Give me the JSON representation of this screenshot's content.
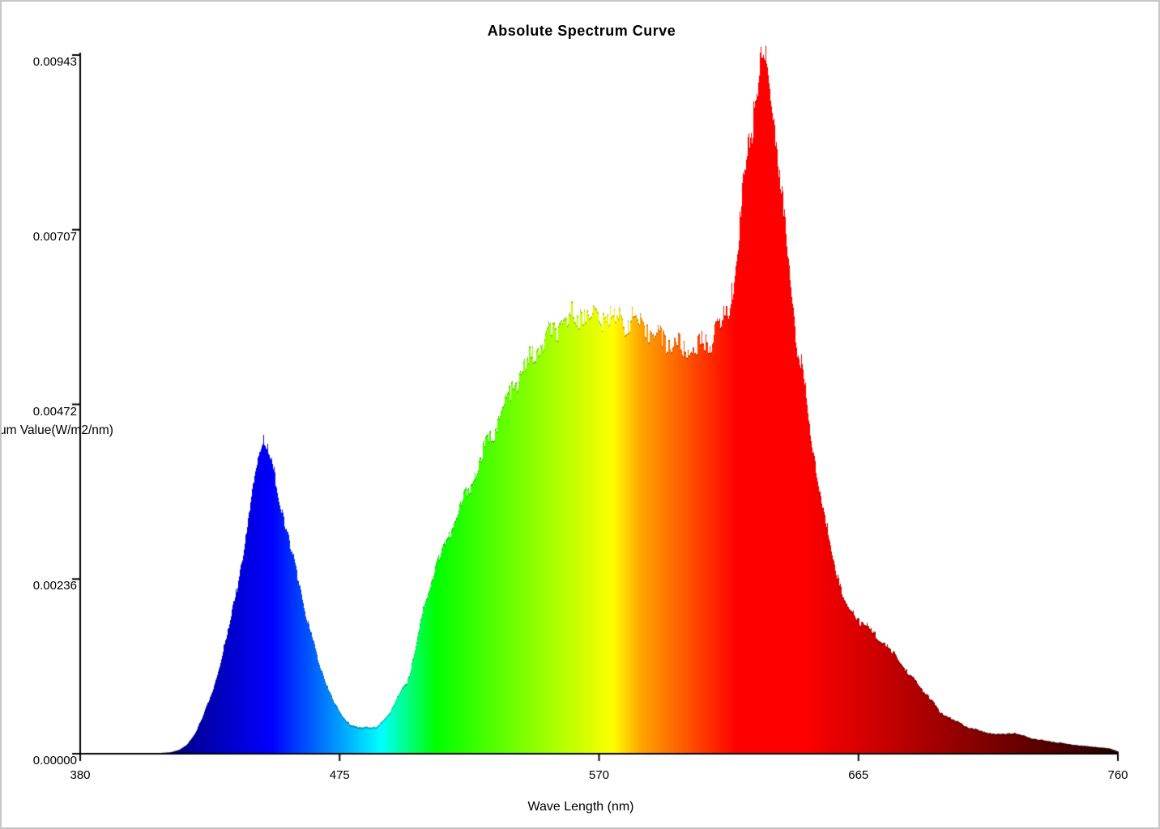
{
  "chart_data": {
    "type": "area",
    "title": "Absolute Spectrum Curve",
    "xlabel": "Wave Length (nm)",
    "ylabel_visible": "um Value(W/m2/nm)",
    "series_name": "absolute spectral power distribution",
    "color_mode": "spectral-rainbow-fill",
    "xlim": [
      380,
      760
    ],
    "ylim": [
      0,
      0.00943
    ],
    "x_ticks": [
      "380",
      "475",
      "570",
      "665",
      "760"
    ],
    "y_ticks": [
      "0.00000",
      "0.00236",
      "0.00472",
      "0.00707",
      "0.00943"
    ],
    "grid": false,
    "legend": false,
    "points": [
      [
        380,
        0
      ],
      [
        405,
        0
      ],
      [
        409,
        1e-05
      ],
      [
        413,
        2e-05
      ],
      [
        416,
        5e-05
      ],
      [
        419,
        0.00012
      ],
      [
        422,
        0.00028
      ],
      [
        425,
        0.00052
      ],
      [
        428,
        0.00081
      ],
      [
        431,
        0.00119
      ],
      [
        434,
        0.00166
      ],
      [
        437,
        0.00221
      ],
      [
        440,
        0.0028
      ],
      [
        442,
        0.0033
      ],
      [
        444,
        0.00385
      ],
      [
        446,
        0.0042
      ],
      [
        447,
        0.00425
      ],
      [
        448,
        0.00415
      ],
      [
        450,
        0.00398
      ],
      [
        452,
        0.00356
      ],
      [
        455,
        0.00308
      ],
      [
        458,
        0.00261
      ],
      [
        461,
        0.00214
      ],
      [
        464,
        0.00166
      ],
      [
        467,
        0.00127
      ],
      [
        470,
        0.00094
      ],
      [
        473,
        0.00068
      ],
      [
        476,
        0.0005
      ],
      [
        479,
        0.00039
      ],
      [
        482,
        0.00035
      ],
      [
        485,
        0.00037
      ],
      [
        488,
        0.00035
      ],
      [
        491,
        0.00045
      ],
      [
        494,
        0.00061
      ],
      [
        497,
        0.00083
      ],
      [
        500,
        0.00101
      ],
      [
        503,
        0.0015
      ],
      [
        506,
        0.00203
      ],
      [
        510,
        0.00253
      ],
      [
        515,
        0.00296
      ],
      [
        520,
        0.00339
      ],
      [
        525,
        0.00384
      ],
      [
        530,
        0.00427
      ],
      [
        535,
        0.00466
      ],
      [
        539,
        0.00498
      ],
      [
        544,
        0.00529
      ],
      [
        549,
        0.00553
      ],
      [
        554,
        0.00573
      ],
      [
        559,
        0.00586
      ],
      [
        561,
        0.00592
      ],
      [
        564,
        0.00597
      ],
      [
        566,
        0.00594
      ],
      [
        568,
        0.00589
      ],
      [
        570,
        0.00591
      ],
      [
        572,
        0.00588
      ],
      [
        575,
        0.00591
      ],
      [
        579,
        0.00587
      ],
      [
        584,
        0.00581
      ],
      [
        589,
        0.0057
      ],
      [
        594,
        0.0056
      ],
      [
        598,
        0.00551
      ],
      [
        601,
        0.00545
      ],
      [
        604,
        0.00551
      ],
      [
        606,
        0.00546
      ],
      [
        609,
        0.00556
      ],
      [
        612,
        0.00567
      ],
      [
        615,
        0.00583
      ],
      [
        617,
        0.00597
      ],
      [
        619,
        0.0064
      ],
      [
        621,
        0.0069
      ],
      [
        623,
        0.0078
      ],
      [
        625,
        0.0083
      ],
      [
        627,
        0.00887
      ],
      [
        629,
        0.00928
      ],
      [
        630,
        0.00943
      ],
      [
        631,
        0.00936
      ],
      [
        632,
        0.00928
      ],
      [
        633,
        0.00884
      ],
      [
        635,
        0.00829
      ],
      [
        636,
        0.00771
      ],
      [
        638,
        0.00712
      ],
      [
        639,
        0.00658
      ],
      [
        641,
        0.00611
      ],
      [
        642,
        0.00567
      ],
      [
        644,
        0.00528
      ],
      [
        647,
        0.00436
      ],
      [
        650,
        0.00374
      ],
      [
        652,
        0.00327
      ],
      [
        655,
        0.00275
      ],
      [
        658,
        0.00232
      ],
      [
        660,
        0.00203
      ],
      [
        664,
        0.00185
      ],
      [
        669,
        0.00168
      ],
      [
        675,
        0.00146
      ],
      [
        680,
        0.00125
      ],
      [
        685,
        0.001
      ],
      [
        690,
        0.0008
      ],
      [
        695,
        0.00055
      ],
      [
        700,
        0.00045
      ],
      [
        705,
        0.00036
      ],
      [
        710,
        0.0003
      ],
      [
        716,
        0.00026
      ],
      [
        722,
        0.00028
      ],
      [
        728,
        0.00021
      ],
      [
        734,
        0.00017
      ],
      [
        740,
        0.00014
      ],
      [
        746,
        0.00011
      ],
      [
        752,
        9e-05
      ],
      [
        757,
        7e-05
      ],
      [
        760,
        3e-05
      ]
    ]
  }
}
